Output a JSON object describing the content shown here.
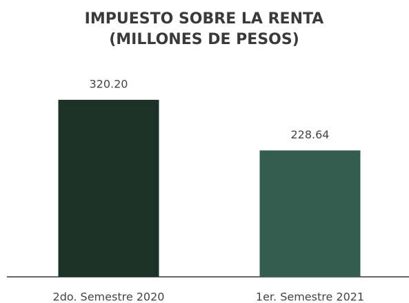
{
  "chart_data": {
    "type": "bar",
    "title": [
      "IMPUESTO SOBRE LA RENTA",
      "(MILLONES DE PESOS)"
    ],
    "categories": [
      "2do. Semestre 2020",
      "1er. Semestre 2021"
    ],
    "values": [
      320.2,
      228.64
    ],
    "value_labels": [
      "320.20",
      "228.64"
    ],
    "colors": [
      "#1c3128",
      "#345c4f"
    ],
    "ylim": [
      0,
      350
    ]
  }
}
